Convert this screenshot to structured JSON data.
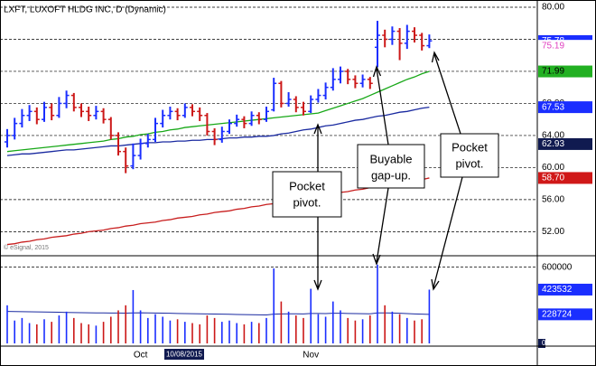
{
  "chart_data": {
    "type": "ohlc",
    "title": "LXFT, LUXOFT HLDG INC, D (Dynamic)",
    "copyright": "© eSignal, 2015",
    "cursor_date": "10/08/2015",
    "categories": [
      null,
      null,
      null,
      null,
      null,
      null,
      null,
      null,
      null,
      null,
      null,
      null,
      null,
      null,
      null,
      null,
      null,
      null,
      "Oct",
      null,
      null,
      null,
      null,
      null,
      null,
      null,
      null,
      null,
      null,
      null,
      null,
      null,
      null,
      null,
      null,
      null,
      null,
      null,
      null,
      null,
      null,
      "Nov",
      null,
      null,
      null,
      null,
      null,
      null,
      null,
      null,
      null,
      null,
      null,
      null,
      null,
      null,
      null,
      null
    ],
    "open": [
      63.2,
      64.0,
      65.5,
      66.5,
      67.0,
      66.0,
      67.5,
      66.5,
      68.0,
      69.0,
      67.5,
      67.0,
      66.5,
      67.0,
      66.0,
      64.0,
      62.0,
      60.2,
      61.5,
      63.0,
      63.5,
      65.5,
      66.5,
      67.0,
      66.5,
      67.5,
      67.0,
      66.5,
      64.5,
      63.5,
      64.5,
      65.5,
      66.0,
      65.5,
      66.5,
      66.0,
      67.2,
      70.5,
      68.0,
      68.5,
      67.5,
      67.0,
      68.5,
      69.0,
      70.0,
      71.0,
      72.0,
      71.0,
      70.5,
      71.0,
      75.0,
      76.5,
      76.0,
      77.0,
      75.5,
      77.0,
      76.5,
      75.2
    ],
    "high": [
      64.8,
      66.2,
      67.3,
      67.8,
      67.5,
      68.2,
      68.0,
      68.8,
      69.6,
      69.3,
      68.0,
      67.6,
      67.7,
      67.4,
      66.3,
      64.4,
      62.5,
      63.0,
      63.6,
      64.2,
      66.2,
      67.2,
      67.6,
      67.4,
      68.0,
      67.9,
      67.5,
      66.8,
      64.9,
      65.1,
      66.0,
      66.6,
      66.4,
      67.0,
      66.9,
      67.6,
      71.2,
      70.8,
      69.4,
      68.9,
      68.2,
      69.0,
      69.8,
      70.6,
      72.4,
      72.6,
      72.3,
      71.5,
      71.6,
      71.3,
      78.3,
      77.2,
      77.6,
      77.4,
      77.8,
      77.5,
      76.8,
      76.6
    ],
    "low": [
      62.5,
      63.5,
      65.0,
      65.8,
      65.4,
      65.7,
      65.9,
      66.2,
      67.4,
      67.0,
      66.3,
      65.8,
      66.0,
      65.5,
      63.5,
      61.5,
      59.3,
      59.8,
      61.0,
      62.5,
      63.2,
      65.0,
      66.0,
      65.9,
      66.2,
      66.4,
      65.8,
      64.0,
      62.8,
      63.1,
      64.2,
      65.1,
      64.9,
      65.2,
      65.4,
      65.7,
      67.0,
      67.5,
      67.6,
      66.9,
      66.5,
      66.8,
      68.1,
      68.5,
      69.6,
      70.5,
      70.4,
      69.9,
      70.0,
      69.8,
      72.5,
      75.0,
      75.3,
      73.4,
      74.8,
      75.6,
      74.6,
      74.9
    ],
    "close": [
      64.0,
      65.5,
      66.5,
      67.0,
      66.0,
      67.5,
      66.5,
      68.0,
      69.0,
      67.5,
      67.0,
      66.5,
      67.0,
      66.0,
      64.0,
      62.0,
      60.2,
      61.5,
      63.0,
      63.5,
      65.5,
      66.5,
      67.0,
      66.5,
      67.5,
      67.0,
      66.5,
      64.5,
      63.5,
      64.5,
      65.5,
      66.0,
      65.5,
      66.5,
      66.0,
      67.0,
      70.5,
      68.0,
      68.5,
      67.5,
      67.0,
      68.5,
      69.0,
      70.0,
      71.0,
      72.0,
      71.0,
      70.5,
      71.0,
      70.5,
      76.5,
      76.0,
      77.0,
      75.5,
      77.0,
      76.5,
      75.2,
      75.8
    ],
    "up_color": "#1a2eff",
    "down_color": "#cc1818",
    "ylim": [
      49,
      80.9
    ],
    "yticks": [
      {
        "value": 80,
        "label": "80.00"
      },
      {
        "value": 76,
        "label": "76.00"
      },
      {
        "value": 72,
        "label": "72.00"
      },
      {
        "value": 68,
        "label": "68.00"
      },
      {
        "value": 64,
        "label": "64.00"
      },
      {
        "value": 60,
        "label": "60.00"
      },
      {
        "value": 56,
        "label": "56.00"
      },
      {
        "value": 52,
        "label": "52.00"
      }
    ],
    "grid": true,
    "overlays": [
      {
        "color": "#18a818",
        "values": [
          62.0,
          62.1,
          62.2,
          62.3,
          62.4,
          62.5,
          62.6,
          62.7,
          62.8,
          62.9,
          63.0,
          63.1,
          63.2,
          63.3,
          63.5,
          63.6,
          63.8,
          63.9,
          64.1,
          64.2,
          64.4,
          64.5,
          64.7,
          64.8,
          65.0,
          65.1,
          65.2,
          65.3,
          65.4,
          65.5,
          65.6,
          65.7,
          65.8,
          65.9,
          66.0,
          66.1,
          66.2,
          66.3,
          66.4,
          66.5,
          66.6,
          66.7,
          66.8,
          67.1,
          67.4,
          67.7,
          68.0,
          68.3,
          68.6,
          69.0,
          69.4,
          69.8,
          70.2,
          70.6,
          71.0,
          71.3,
          71.7,
          71.99
        ]
      },
      {
        "color": "#1a2aa0",
        "values": [
          61.5,
          61.6,
          61.7,
          61.7,
          61.8,
          61.9,
          62.0,
          62.1,
          62.2,
          62.2,
          62.3,
          62.4,
          62.5,
          62.6,
          62.7,
          62.7,
          62.8,
          62.9,
          63.0,
          63.1,
          63.1,
          63.2,
          63.2,
          63.3,
          63.3,
          63.4,
          63.4,
          63.5,
          63.5,
          63.6,
          63.7,
          63.7,
          63.8,
          63.8,
          63.9,
          63.9,
          64.0,
          64.2,
          64.3,
          64.5,
          64.7,
          64.8,
          65.0,
          65.2,
          65.3,
          65.5,
          65.7,
          65.9,
          66.0,
          66.2,
          66.4,
          66.5,
          66.7,
          66.9,
          67.0,
          67.2,
          67.4,
          67.53
        ]
      },
      {
        "color": "#c81e1e",
        "values": [
          50.4,
          50.5,
          50.7,
          50.8,
          51.0,
          51.1,
          51.3,
          51.4,
          51.5,
          51.7,
          51.8,
          52.0,
          52.1,
          52.2,
          52.4,
          52.5,
          52.7,
          52.8,
          53.0,
          53.1,
          53.2,
          53.4,
          53.5,
          53.7,
          53.8,
          53.9,
          54.1,
          54.2,
          54.4,
          54.5,
          54.6,
          54.8,
          54.9,
          55.1,
          55.2,
          55.4,
          55.5,
          55.7,
          55.8,
          56.0,
          56.1,
          56.3,
          56.4,
          56.6,
          56.7,
          56.9,
          57.0,
          57.2,
          57.3,
          57.5,
          57.6,
          57.8,
          57.9,
          58.1,
          58.2,
          58.4,
          58.5,
          58.7
        ]
      }
    ],
    "price_labels": [
      {
        "value": 75.78,
        "label": "75.78",
        "color": "#1a2eff",
        "text_color": "#ffffff"
      },
      {
        "value": 75.19,
        "label": "75.19",
        "color": "#ffffff",
        "text_color": "#e040c0"
      },
      {
        "value": 71.99,
        "label": "71.99",
        "color": "#22b022",
        "text_color": "#000000"
      },
      {
        "value": 67.53,
        "label": "67.53",
        "color": "#1a2eff",
        "text_color": "#ffffff"
      },
      {
        "value": 62.93,
        "label": "62.93",
        "color": "#101a50",
        "text_color": "#ffffff"
      },
      {
        "value": 58.7,
        "label": "58.70",
        "color": "#d01818",
        "text_color": "#ffffff"
      }
    ],
    "volume": {
      "values": [
        300000,
        180000,
        200000,
        160000,
        150000,
        190000,
        170000,
        220000,
        250000,
        200000,
        160000,
        150000,
        140000,
        170000,
        210000,
        260000,
        300000,
        420000,
        260000,
        200000,
        230000,
        210000,
        180000,
        190000,
        170000,
        160000,
        150000,
        220000,
        200000,
        170000,
        180000,
        160000,
        150000,
        170000,
        160000,
        200000,
        590000,
        330000,
        250000,
        220000,
        200000,
        430000,
        230000,
        210000,
        330000,
        260000,
        200000,
        180000,
        190000,
        220000,
        620000,
        300000,
        250000,
        230000,
        200000,
        180000,
        190000,
        423532
      ],
      "ylim": [
        0,
        690000
      ],
      "yticks": [
        600000,
        0
      ],
      "average": {
        "color": "#1a2aa0",
        "values": [
          252000,
          251000,
          250000,
          249000,
          248000,
          247000,
          246000,
          245000,
          244000,
          243000,
          242000,
          241000,
          240000,
          240000,
          239000,
          239000,
          238000,
          240000,
          241000,
          240000,
          239000,
          238000,
          237000,
          236000,
          235000,
          234000,
          233000,
          232000,
          231000,
          230000,
          229000,
          228000,
          227000,
          226000,
          225000,
          224000,
          230000,
          232000,
          233000,
          233000,
          232000,
          236000,
          236000,
          235000,
          237000,
          237000,
          236000,
          235000,
          234000,
          233000,
          240000,
          240000,
          239000,
          237000,
          235000,
          232000,
          230000,
          228724
        ]
      },
      "labels": [
        {
          "value": 423532,
          "color": "#1a2eff"
        },
        {
          "value": 228724,
          "color": "#1a2eff"
        }
      ]
    },
    "annotations": [
      {
        "lines": [
          "Pocket",
          "pivot."
        ]
      },
      {
        "lines": [
          "Buyable",
          "gap-up."
        ]
      },
      {
        "lines": [
          "Pocket",
          "pivot."
        ]
      }
    ]
  }
}
